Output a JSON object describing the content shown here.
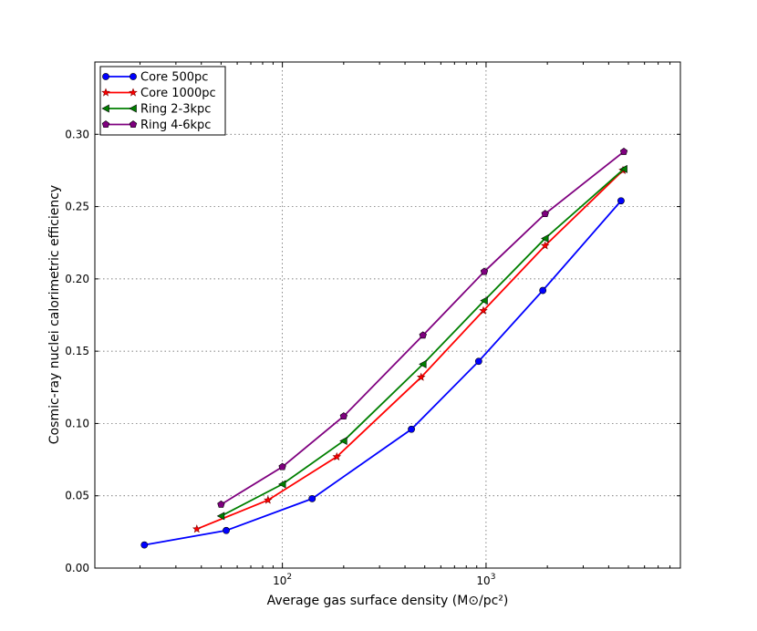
{
  "chart_data": {
    "type": "line",
    "title": "",
    "xlabel": "Average gas surface density",
    "xlabel_unit": "(M⊙/pc²)",
    "ylabel": "Cosmic-ray nuclei calorimetric efficiency",
    "xscale": "log",
    "xlim": [
      12,
      9000
    ],
    "ylim": [
      0.0,
      0.35
    ],
    "xticks": [
      {
        "value": 100,
        "base": "10",
        "exp": "2"
      },
      {
        "value": 1000,
        "base": "10",
        "exp": "3"
      }
    ],
    "yticks": [
      "0.00",
      "0.05",
      "0.10",
      "0.15",
      "0.20",
      "0.25",
      "0.30"
    ],
    "grid": true,
    "legend_position": "top-left",
    "series": [
      {
        "name": "Core 500pc",
        "color": "#0000ff",
        "marker": "circle",
        "points": [
          [
            21,
            0.016
          ],
          [
            53,
            0.026
          ],
          [
            140,
            0.048
          ],
          [
            430,
            0.096
          ],
          [
            920,
            0.143
          ],
          [
            1900,
            0.192
          ],
          [
            4600,
            0.254
          ]
        ]
      },
      {
        "name": "Core 1000pc",
        "color": "#ff0000",
        "marker": "star",
        "points": [
          [
            38,
            0.027
          ],
          [
            85,
            0.047
          ],
          [
            185,
            0.077
          ],
          [
            480,
            0.132
          ],
          [
            970,
            0.178
          ],
          [
            1950,
            0.223
          ],
          [
            4700,
            0.275
          ]
        ]
      },
      {
        "name": "Ring 2-3kpc",
        "color": "#007f00",
        "marker": "triangle-left",
        "points": [
          [
            50,
            0.036
          ],
          [
            100,
            0.058
          ],
          [
            200,
            0.088
          ],
          [
            490,
            0.141
          ],
          [
            980,
            0.185
          ],
          [
            1950,
            0.228
          ],
          [
            4750,
            0.276
          ]
        ]
      },
      {
        "name": "Ring 4-6kpc",
        "color": "#7f007f",
        "marker": "pentagon",
        "points": [
          [
            50,
            0.044
          ],
          [
            100,
            0.07
          ],
          [
            200,
            0.105
          ],
          [
            490,
            0.161
          ],
          [
            980,
            0.205
          ],
          [
            1950,
            0.245
          ],
          [
            4750,
            0.288
          ]
        ]
      }
    ]
  }
}
